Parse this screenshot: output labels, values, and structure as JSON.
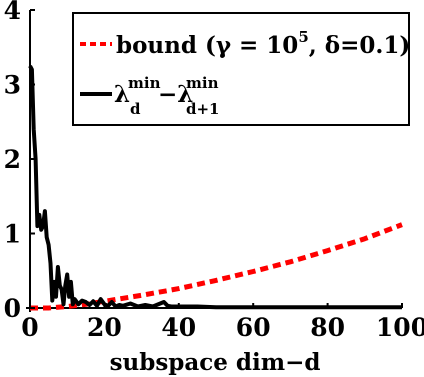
{
  "chart_data": {
    "type": "line",
    "xlabel": "subspace dim−d",
    "ylabel": "",
    "xlim": [
      0,
      100
    ],
    "ylim": [
      0,
      4
    ],
    "x_ticks": [
      "0",
      "20",
      "40",
      "60",
      "80",
      "100"
    ],
    "y_ticks": [
      "0",
      "1",
      "2",
      "3",
      "4"
    ],
    "grid": false,
    "legend_position": "top-right",
    "series": [
      {
        "name": "bound (γ = 10^5, δ=0.1)",
        "legend_parts": {
          "pre": "bound (γ = 10",
          "sup": "5",
          "post": ", δ=0.1)"
        },
        "style": "dashed",
        "color": "#ff0000",
        "x": [
          0,
          5,
          10,
          15,
          20,
          25,
          30,
          40,
          50,
          60,
          70,
          80,
          90,
          100
        ],
        "y": [
          0.0,
          0.0,
          0.02,
          0.05,
          0.09,
          0.13,
          0.17,
          0.26,
          0.37,
          0.49,
          0.62,
          0.77,
          0.93,
          1.12
        ]
      },
      {
        "name": "λ_d^min − λ_{d+1}^min",
        "legend_parts": {
          "lam": "λ",
          "sub1": "d",
          "minus": "−λ",
          "sub2": "d+1",
          "sup": "min"
        },
        "style": "solid",
        "color": "#000000",
        "x": [
          0,
          0.5,
          1,
          1.5,
          2,
          2.5,
          3,
          3.5,
          4,
          4.5,
          5,
          5.5,
          6,
          6.5,
          7,
          7.5,
          8,
          8.5,
          9,
          9.5,
          10,
          10.5,
          11,
          11.5,
          12,
          13,
          14,
          15,
          16,
          17,
          18,
          19,
          20,
          21,
          22,
          23,
          24,
          25,
          27,
          29,
          31,
          33,
          35,
          36,
          37,
          38,
          40,
          45,
          50,
          60,
          70,
          80,
          90,
          100
        ],
        "y": [
          3.25,
          3.2,
          2.4,
          2.0,
          1.1,
          1.25,
          1.05,
          1.1,
          1.3,
          0.95,
          0.85,
          0.6,
          0.1,
          0.35,
          0.15,
          0.55,
          0.3,
          0.25,
          0.05,
          0.3,
          0.45,
          0.15,
          0.35,
          0.05,
          0.12,
          0.05,
          0.1,
          0.08,
          0.04,
          0.09,
          0.03,
          0.12,
          0.05,
          0.03,
          0.08,
          0.02,
          0.04,
          0.03,
          0.06,
          0.02,
          0.04,
          0.02,
          0.06,
          0.08,
          0.03,
          0.02,
          0.02,
          0.02,
          0.01,
          0.01,
          0.01,
          0.01,
          0.01,
          0.01
        ]
      }
    ]
  }
}
